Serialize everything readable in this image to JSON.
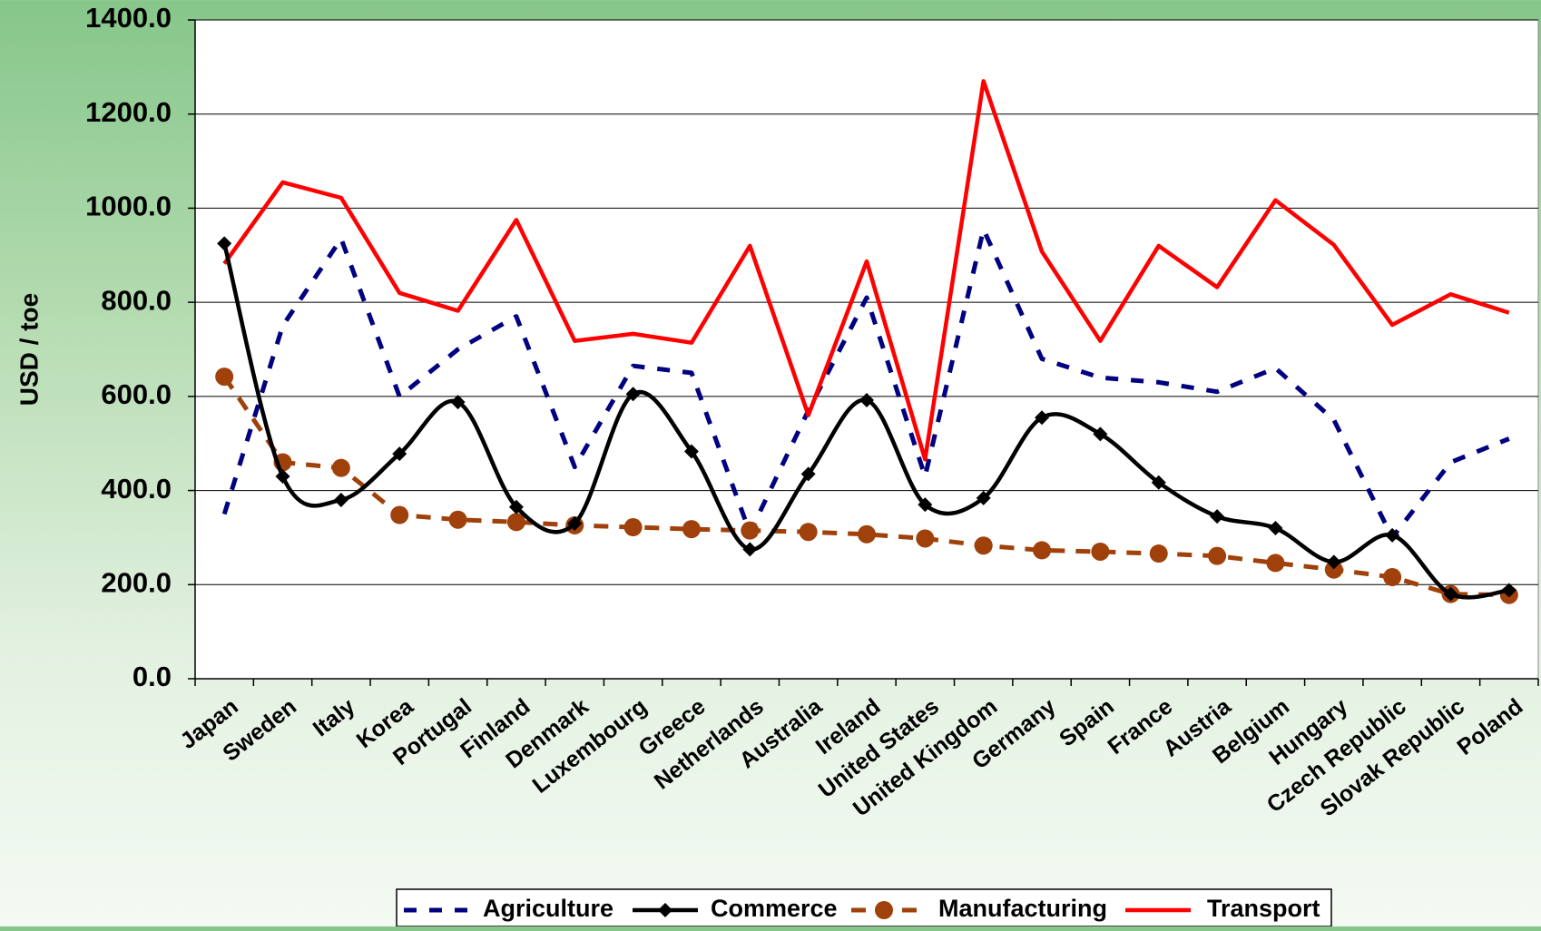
{
  "chart_data": {
    "type": "line",
    "ylabel": "USD / toe",
    "xlabel": "",
    "ylim": [
      0,
      1400
    ],
    "yticks": [
      "0.0",
      "200.0",
      "400.0",
      "600.0",
      "800.0",
      "1000.0",
      "1200.0",
      "1400.0"
    ],
    "categories": [
      "Japan",
      "Sweden",
      "Italy",
      "Korea",
      "Portugal",
      "Finland",
      "Denmark",
      "Luxembourg",
      "Greece",
      "Netherlands",
      "Australia",
      "Ireland",
      "United States",
      "United Kingdom",
      "Germany",
      "Spain",
      "France",
      "Austria",
      "Belgium",
      "Hungary",
      "Czech Republic",
      "Slovak Republic",
      "Poland"
    ],
    "grid": true,
    "legend_position": "bottom",
    "series": [
      {
        "name": "Agriculture",
        "color": "#000080",
        "style": "dashed",
        "marker": "none",
        "values": [
          350,
          750,
          935,
          600,
          700,
          770,
          450,
          665,
          650,
          310,
          570,
          810,
          430,
          955,
          680,
          640,
          630,
          610,
          660,
          550,
          300,
          460,
          510
        ]
      },
      {
        "name": "Commerce",
        "color": "#000000",
        "style": "solid-smooth",
        "marker": "diamond",
        "values": [
          925,
          430,
          380,
          478,
          588,
          365,
          330,
          605,
          483,
          275,
          435,
          592,
          370,
          384,
          555,
          520,
          417,
          345,
          320,
          248,
          305,
          180,
          188
        ]
      },
      {
        "name": "Manufacturing",
        "color": "#A0400A",
        "style": "dashed",
        "marker": "circle",
        "values": [
          642,
          460,
          448,
          348,
          338,
          333,
          326,
          322,
          318,
          315,
          312,
          307,
          298,
          283,
          273,
          270,
          266,
          261,
          246,
          232,
          216,
          180,
          178
        ]
      },
      {
        "name": "Transport",
        "color": "#FF0000",
        "style": "solid",
        "marker": "none",
        "values": [
          882,
          1055,
          1022,
          820,
          782,
          975,
          718,
          733,
          714,
          920,
          560,
          887,
          466,
          1270,
          908,
          718,
          920,
          832,
          1017,
          922,
          752,
          817,
          778
        ]
      }
    ]
  }
}
